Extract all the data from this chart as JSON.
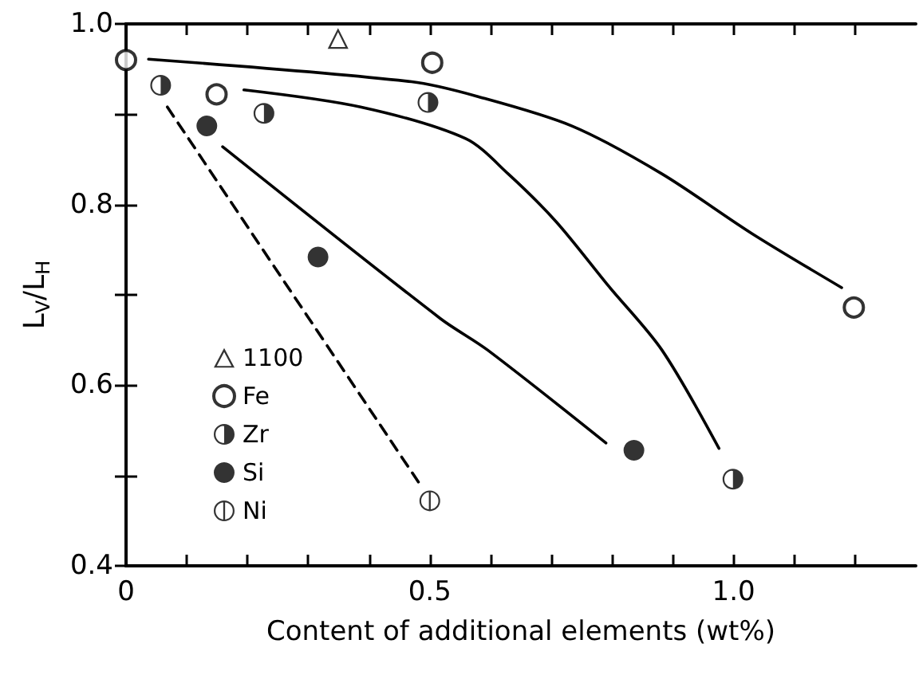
{
  "chart_data": {
    "type": "scatter",
    "xlabel": "Content of additional elements (wt%)",
    "ylabel": "L$_{V}$/L$_{H}$",
    "xlim": [
      0,
      1.3
    ],
    "xticks": [
      0,
      {
        "value": 0.1,
        "label": null
      },
      {
        "value": 0.2,
        "label": null
      },
      {
        "value": 0.3,
        "label": null
      },
      {
        "value": 0.4,
        "label": null
      },
      0.5,
      {
        "value": 0.6,
        "label": null
      },
      {
        "value": 0.7,
        "label": null
      },
      {
        "value": 0.8,
        "label": null
      },
      {
        "value": 0.9,
        "label": null
      },
      {
        "value": 1,
        "label": "1.0"
      },
      {
        "value": 1.1,
        "label": null
      },
      {
        "value": 1.2,
        "label": null
      }
    ],
    "ylim": [
      0.4,
      1.0
    ],
    "yticks": [
      0.4,
      {
        "value": 0.5,
        "label": null
      },
      0.6,
      {
        "value": 0.7,
        "label": null
      },
      0.8,
      {
        "value": 0.9,
        "label": null
      },
      {
        "value": 1,
        "label": "1.0"
      }
    ],
    "grid": false,
    "legend": "left",
    "series": [
      {
        "name": "1100",
        "marker": "triangle",
        "color": "#000000",
        "x": [
          0.349
        ],
        "values": [
          0.984
        ]
      },
      {
        "name": "Fe",
        "marker": "circle",
        "color": "#000000",
        "x": [
          0,
          0.149,
          0.504,
          1.198
        ],
        "values": [
          0.96,
          0.922,
          0.957,
          0.686
        ]
      },
      {
        "name": "Zr",
        "marker": "circle",
        "color": "#000000",
        "x": [
          0.057,
          0.227,
          0.497,
          0.999
        ],
        "values": [
          0.932,
          0.901,
          0.913,
          0.496
        ]
      },
      {
        "name": "Si",
        "marker": "circle",
        "color": "#000000",
        "x": [
          0.133,
          0.316,
          0.836
        ],
        "values": [
          0.887,
          0.742,
          0.528
        ]
      },
      {
        "name": "Ni",
        "marker": "circle",
        "color": "#000000",
        "x": [
          0.5
        ],
        "values": [
          0.472
        ]
      },
      {
        "type": "line",
        "marker": "none",
        "line_style": "solid",
        "color": "#000000",
        "x": [
          0.037,
          0.47,
          0.577,
          0.734,
          0.882,
          1.03,
          1.178
        ],
        "values": [
          0.961,
          0.936,
          0.92,
          0.887,
          0.834,
          0.768,
          0.708
        ]
      },
      {
        "type": "line",
        "marker": "none",
        "line_style": "solid",
        "color": "#000000",
        "x": [
          0.194,
          0.386,
          0.559,
          0.629,
          0.708,
          0.794,
          0.882,
          0.976
        ],
        "values": [
          0.927,
          0.908,
          0.873,
          0.834,
          0.781,
          0.71,
          0.639,
          0.53
        ]
      },
      {
        "type": "line",
        "marker": "none",
        "line_style": "solid",
        "color": "#000000",
        "x": [
          0.159,
          0.517,
          0.595,
          0.79
        ],
        "values": [
          0.864,
          0.674,
          0.639,
          0.536
        ]
      },
      {
        "type": "line",
        "marker": "none",
        "line_style": "dashed",
        "color": "#000000",
        "x": [
          0.068,
          0.486
        ],
        "values": [
          0.908,
          0.488
        ]
      }
    ]
  }
}
